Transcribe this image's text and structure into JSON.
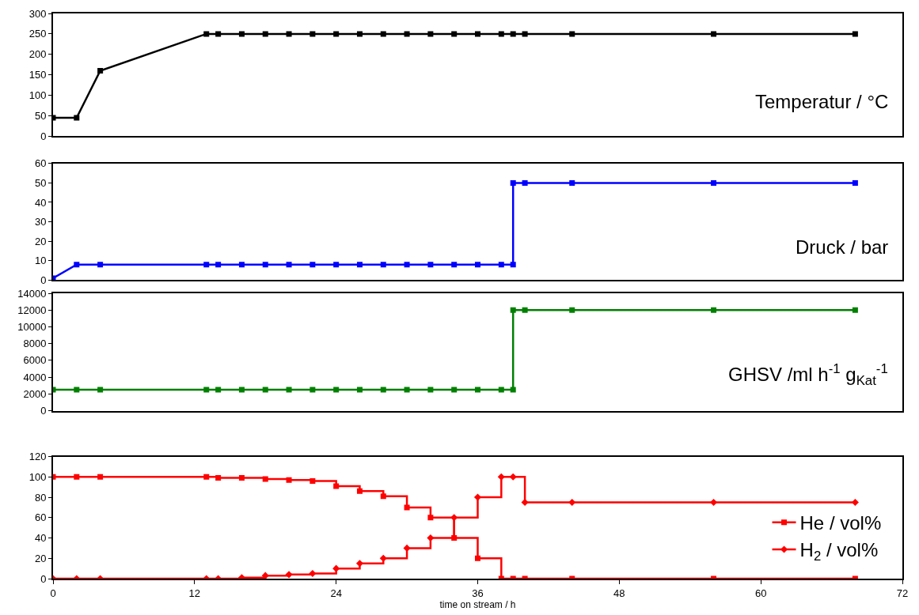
{
  "chart_data": [
    {
      "type": "line",
      "ylabel": "Temperatur / °C",
      "x": [
        0,
        2,
        4,
        13,
        14,
        16,
        18,
        20,
        22,
        24,
        26,
        28,
        30,
        32,
        34,
        36,
        38,
        39,
        40,
        44,
        56,
        68
      ],
      "xlim": [
        0,
        72
      ],
      "ylim": [
        0,
        300
      ],
      "yticks": [
        0,
        50,
        100,
        150,
        200,
        250,
        300
      ],
      "tick_labels": "y",
      "marker": "square",
      "legend": false,
      "series": [
        {
          "color": "#000000",
          "values": [
            45,
            45,
            160,
            250,
            250,
            250,
            250,
            250,
            250,
            250,
            250,
            250,
            250,
            250,
            250,
            250,
            250,
            250,
            250,
            250,
            250,
            250
          ]
        }
      ]
    },
    {
      "type": "line",
      "ylabel": "Druck / bar",
      "x": [
        0,
        2,
        4,
        13,
        14,
        16,
        18,
        20,
        22,
        24,
        26,
        28,
        30,
        32,
        34,
        36,
        38,
        39,
        39,
        40,
        44,
        56,
        68
      ],
      "xlim": [
        0,
        72
      ],
      "ylim": [
        0,
        60
      ],
      "yticks": [
        0,
        10,
        20,
        30,
        40,
        50,
        60
      ],
      "tick_labels": "y",
      "marker": "square",
      "legend": false,
      "series": [
        {
          "color": "#0000ff",
          "values": [
            1,
            8,
            8,
            8,
            8,
            8,
            8,
            8,
            8,
            8,
            8,
            8,
            8,
            8,
            8,
            8,
            8,
            8,
            50,
            50,
            50,
            50,
            50
          ]
        }
      ]
    },
    {
      "type": "line",
      "ylabel": "GHSV /ml h$^{-1}$ g$_{Kat}$$^{-1}$",
      "x": [
        0,
        2,
        4,
        13,
        14,
        16,
        18,
        20,
        22,
        24,
        26,
        28,
        30,
        32,
        34,
        36,
        38,
        39,
        39,
        40,
        44,
        56,
        68
      ],
      "xlim": [
        0,
        72
      ],
      "ylim": [
        0,
        14000
      ],
      "yticks": [
        0,
        2000,
        4000,
        6000,
        8000,
        10000,
        12000,
        14000
      ],
      "tick_labels": "y",
      "marker": "square",
      "legend": false,
      "series": [
        {
          "color": "#008000",
          "values": [
            2500,
            2500,
            2500,
            2500,
            2500,
            2500,
            2500,
            2500,
            2500,
            2500,
            2500,
            2500,
            2500,
            2500,
            2500,
            2500,
            2500,
            2500,
            12000,
            12000,
            12000,
            12000,
            12000
          ]
        }
      ]
    },
    {
      "type": "step",
      "xlabel": "time on stream / h",
      "x": [
        0,
        2,
        4,
        13,
        14,
        16,
        18,
        20,
        22,
        24,
        26,
        28,
        30,
        32,
        34,
        36,
        38,
        39,
        40,
        44,
        56,
        68
      ],
      "xlim": [
        0,
        72
      ],
      "xticks": [
        0,
        12,
        24,
        36,
        48,
        60,
        72
      ],
      "ylim": [
        0,
        120
      ],
      "yticks": [
        0,
        20,
        40,
        60,
        80,
        100,
        120
      ],
      "legend": "bottom right",
      "series": [
        {
          "name": "He / vol%",
          "color": "#ff0000",
          "marker": "square",
          "values": [
            100,
            100,
            100,
            100,
            99,
            99,
            98,
            97,
            96,
            91,
            86,
            81,
            70,
            60,
            40,
            20,
            0,
            0,
            0,
            0,
            0,
            0
          ]
        },
        {
          "name": "H$_{2}$ / vol%",
          "color": "#ff0000",
          "marker": "diamond",
          "values": [
            0,
            0,
            0,
            0,
            0,
            1,
            3,
            4,
            5,
            10,
            15,
            20,
            30,
            40,
            60,
            80,
            100,
            100,
            75,
            75,
            75,
            75
          ]
        }
      ]
    }
  ]
}
